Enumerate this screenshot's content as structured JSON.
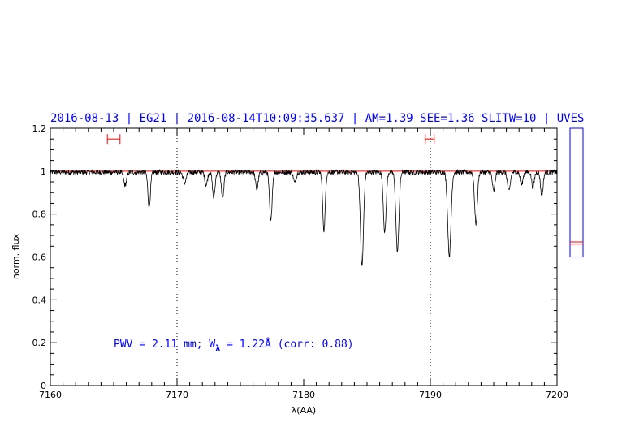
{
  "header": {
    "title": "2016-08-13 | EG21 | 2016-08-14T10:09:35.637 | AM=1.39 SEE=1.36 SLITW=10 | UVES"
  },
  "annotation": {
    "pwv_text": "PWV = 2.11 mm; W",
    "lambda_sub": "λ",
    "w_text": " = 1.22Å (corr: 0.88)"
  },
  "colors": {
    "title": "#0000ff",
    "spectrum": "#000000",
    "continuum": "#ff0000",
    "range_marker": "#ff0000",
    "side_box": "#0000ff"
  },
  "chart_data": {
    "type": "line",
    "xlabel": "λ(AA)",
    "ylabel": "norm. flux",
    "xlim": [
      7160,
      7200
    ],
    "ylim": [
      0,
      1.2
    ],
    "xticks": [
      7160,
      7170,
      7180,
      7190,
      7200
    ],
    "xtick_labels": [
      "7160",
      "7170",
      "7180",
      "7190",
      "7200"
    ],
    "yticks": [
      0,
      0.2,
      0.4,
      0.6,
      0.8,
      1,
      1.2
    ],
    "ytick_labels": [
      "0",
      "0.2",
      "0.4",
      "0.6",
      "0.8",
      "1",
      "1.2"
    ],
    "continuum": 1.0,
    "vlines": [
      7170,
      7190
    ],
    "range_markers": [
      {
        "x": [
          7164.5,
          7165.5
        ],
        "y": 1.15
      },
      {
        "x": [
          7189.6,
          7190.3
        ],
        "y": 1.15
      }
    ],
    "side_indicator": {
      "y_range": [
        0.6,
        1.2
      ],
      "marks": [
        0.66,
        0.67
      ]
    },
    "absorption_lines": [
      {
        "center": 7165.9,
        "depth": 0.06,
        "width": 0.12
      },
      {
        "center": 7167.8,
        "depth": 0.16,
        "width": 0.1
      },
      {
        "center": 7170.6,
        "depth": 0.05,
        "width": 0.12
      },
      {
        "center": 7172.3,
        "depth": 0.06,
        "width": 0.1
      },
      {
        "center": 7172.9,
        "depth": 0.12,
        "width": 0.1
      },
      {
        "center": 7173.6,
        "depth": 0.12,
        "width": 0.1
      },
      {
        "center": 7176.3,
        "depth": 0.08,
        "width": 0.1
      },
      {
        "center": 7177.4,
        "depth": 0.23,
        "width": 0.1
      },
      {
        "center": 7179.3,
        "depth": 0.05,
        "width": 0.1
      },
      {
        "center": 7181.6,
        "depth": 0.27,
        "width": 0.1
      },
      {
        "center": 7184.6,
        "depth": 0.44,
        "width": 0.12
      },
      {
        "center": 7186.4,
        "depth": 0.28,
        "width": 0.11
      },
      {
        "center": 7187.4,
        "depth": 0.37,
        "width": 0.12
      },
      {
        "center": 7191.5,
        "depth": 0.39,
        "width": 0.13
      },
      {
        "center": 7193.6,
        "depth": 0.24,
        "width": 0.11
      },
      {
        "center": 7195.0,
        "depth": 0.09,
        "width": 0.1
      },
      {
        "center": 7196.2,
        "depth": 0.09,
        "width": 0.11
      },
      {
        "center": 7197.2,
        "depth": 0.06,
        "width": 0.1
      },
      {
        "center": 7198.1,
        "depth": 0.07,
        "width": 0.1
      },
      {
        "center": 7198.8,
        "depth": 0.11,
        "width": 0.1
      }
    ]
  }
}
